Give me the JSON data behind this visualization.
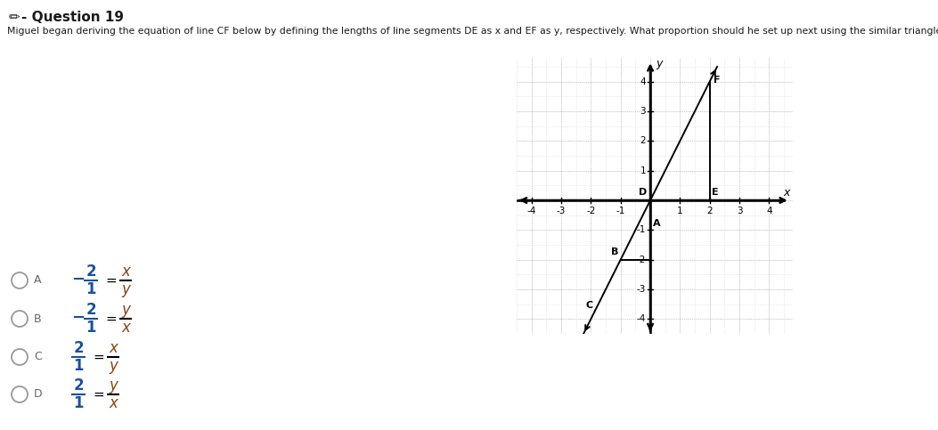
{
  "title_pencil": "✏",
  "title_text": "- Question 19",
  "question_text": "Miguel began deriving the equation of line CF below by defining the lengths of line segments DE as x and EF as y, respectively. What proportion should he set up next using the similar triangles ABC and DEF?",
  "graph": {
    "xlim": [
      -4.5,
      4.8
    ],
    "ylim": [
      -4.5,
      4.8
    ],
    "xticks": [
      -4,
      -3,
      -2,
      -1,
      1,
      2,
      3,
      4
    ],
    "yticks": [
      -4,
      -3,
      -2,
      -1,
      1,
      2,
      3,
      4
    ],
    "points": {
      "D": [
        0,
        0
      ],
      "E": [
        2,
        0
      ],
      "F": [
        2,
        4
      ],
      "A": [
        0,
        -1
      ],
      "B": [
        -1,
        -2
      ],
      "C": [
        -2,
        -4
      ]
    }
  },
  "choices": [
    {
      "label": "A",
      "neg": true,
      "lhs_num": "2",
      "lhs_den": "1",
      "rhs_num": "x",
      "rhs_den": "y"
    },
    {
      "label": "B",
      "neg": true,
      "lhs_num": "2",
      "lhs_den": "1",
      "rhs_num": "y",
      "rhs_den": "x"
    },
    {
      "label": "C",
      "neg": false,
      "lhs_num": "2",
      "lhs_den": "1",
      "rhs_num": "x",
      "rhs_den": "y"
    },
    {
      "label": "D",
      "neg": false,
      "lhs_num": "2",
      "lhs_den": "1",
      "rhs_num": "y",
      "rhs_den": "x"
    }
  ],
  "colors": {
    "bg": "#ffffff",
    "title": "#1a1a1a",
    "question": "#1a1a1a",
    "num_blue": "#1a4fa0",
    "var_brown": "#8B4513",
    "choice_letter": "#666666",
    "circle": "#999999",
    "graph_dot": "#bbbbbb",
    "graph_dot2": "#d8d8d8",
    "axis": "#000000",
    "line": "#000000"
  }
}
